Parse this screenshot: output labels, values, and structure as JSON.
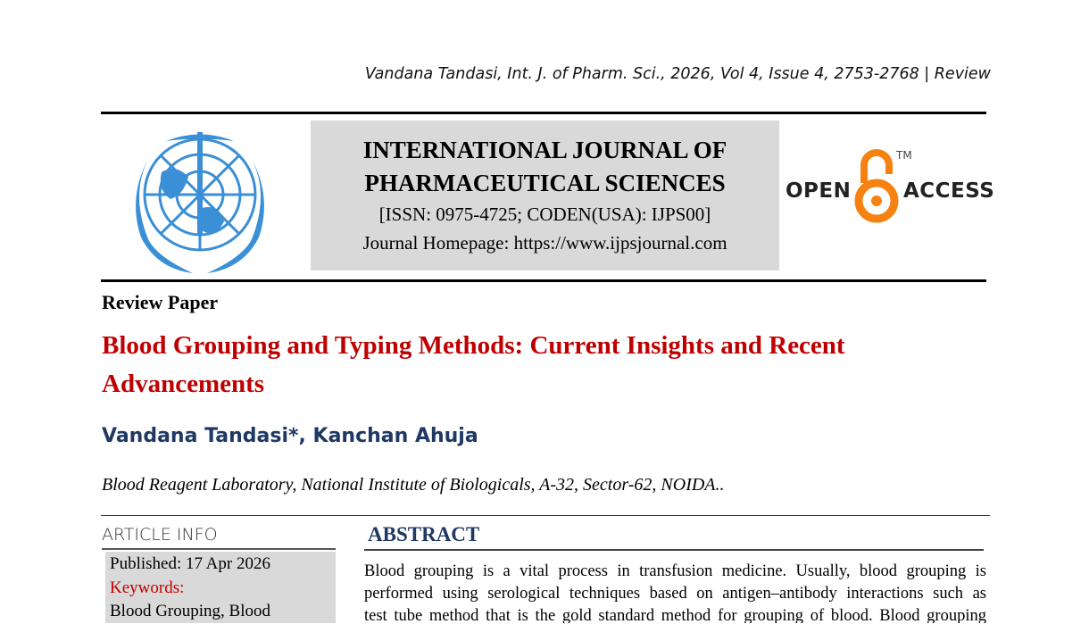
{
  "citation": "Vandana Tandasi, Int. J. of Pharm. Sci., 2026, Vol 4, Issue 4, 2753-2768 | Review",
  "journal": {
    "title_line1": "INTERNATIONAL JOURNAL OF",
    "title_line2": "PHARMACEUTICAL SCIENCES",
    "issn": "[ISSN: 0975-4725; CODEN(USA): IJPS00]",
    "homepage": "Journal Homepage: https://www.ijpsjournal.com"
  },
  "open_access": {
    "left": "OPEN",
    "right": "ACCESS",
    "tm": "TM",
    "color": "#f68212"
  },
  "logo_color": "#3a8fd6",
  "paper_type": "Review Paper",
  "title_line1": "Blood Grouping and Typing Methods: Current Insights and Recent",
  "title_line2": "Advancements",
  "authors": "Vandana Tandasi*, Kanchan Ahuja",
  "affiliation": "Blood Reagent Laboratory, National Institute of Biologicals, A-32, Sector-62, NOIDA..",
  "article_info": {
    "heading": "ARTICLE INFO",
    "published": "Published: 17 Apr 2026",
    "keywords_label": "Keywords:",
    "keywords": "Blood Grouping, Blood"
  },
  "abstract": {
    "heading": "ABSTRACT",
    "lines": [
      "Blood grouping is a vital process in transfusion medicine. Usually, blood grouping is",
      "performed using serological techniques based on antigen–antibody interactions such as",
      "test tube method that is the gold standard method for grouping of blood. Blood grouping"
    ]
  }
}
